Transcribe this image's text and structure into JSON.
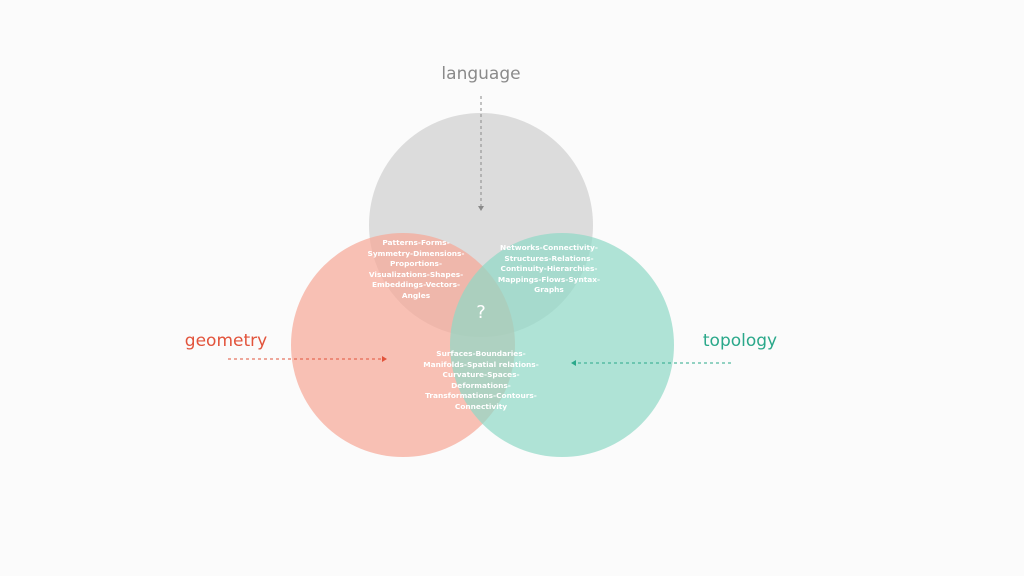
{
  "colors": {
    "background": "#fbfbfb",
    "language_circle": "#cfcfcf",
    "geometry_circle": "#f7a696",
    "topology_circle": "#8fd9c6",
    "language_text": "#8a8a8a",
    "geometry_text": "#e2533b",
    "topology_text": "#2aa88a"
  },
  "sets": {
    "language": "language",
    "geometry": "geometry",
    "topology": "topology"
  },
  "intersections": {
    "language_geometry": [
      "Patterns-Forms-",
      "Symmetry-Dimensions-",
      "Proportions-",
      "Visualizations-Shapes-",
      "Embeddings-Vectors-",
      "Angles"
    ],
    "language_topology": [
      "Networks-Connectivity-",
      "Structures-Relations-",
      "Continuity-Hierarchies-",
      "Mappings-Flows-Syntax-",
      "Graphs"
    ],
    "geometry_topology": [
      "Surfaces-Boundaries-",
      "Manifolds-Spatial relations-",
      "Curvature-Spaces-",
      "Deformations-",
      "Transformations-Contours-",
      "Connectivity"
    ],
    "center": "?"
  }
}
